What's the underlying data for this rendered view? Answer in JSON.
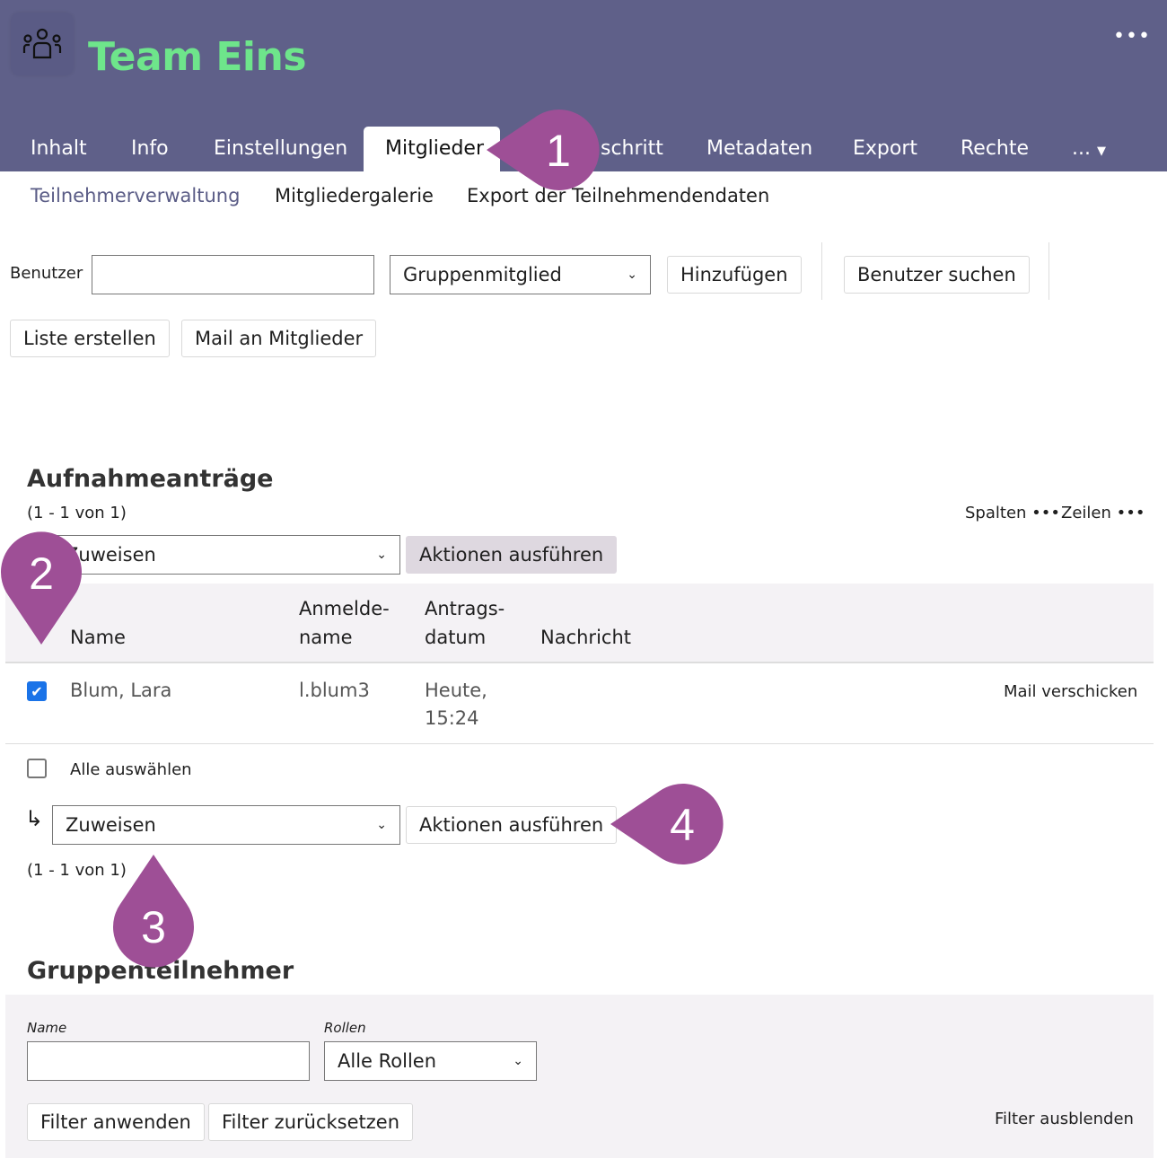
{
  "header": {
    "title": "Team Eins",
    "logo_icon": "group-icon",
    "more_icon": "more-icon",
    "more": "•••",
    "bg_color": "#5f6089",
    "title_color": "#6ee58b"
  },
  "tabs": [
    {
      "label": "Inhalt"
    },
    {
      "label": "Info"
    },
    {
      "label": "Einstellungen"
    },
    {
      "label": "Mitglieder",
      "active": true
    },
    {
      "label": "schritt"
    },
    {
      "label": "Metadaten"
    },
    {
      "label": "Export"
    },
    {
      "label": "Rechte"
    },
    {
      "label": "..."
    }
  ],
  "subtabs": [
    {
      "label": "Teilnehmerverwaltung",
      "active": true
    },
    {
      "label": "Mitgliedergalerie"
    },
    {
      "label": "Export der Teilnehmendendaten"
    }
  ],
  "toolbar": {
    "user_label": "Benutzer",
    "user_value": "",
    "role_select": "Gruppenmitglied",
    "add": "Hinzufügen",
    "search_user": "Benutzer suchen",
    "create_list": "Liste erstellen",
    "mail_members": "Mail an Mitglieder"
  },
  "requests": {
    "title": "Aufnahmeanträge",
    "range": "(1 - 1 von 1)",
    "columns_label": "Spalten •••",
    "rows_label": "Zeilen •••",
    "action_select": "Zuweisen",
    "run_actions": "Aktionen ausführen",
    "headers": {
      "name": "Name",
      "login_1": "Anmelde-",
      "login_2": "name",
      "date_1": "Antrags-",
      "date_2": "datum",
      "message": "Nachricht"
    },
    "rows": [
      {
        "checked": true,
        "name": "Blum, Lara",
        "login": "l.blum3",
        "date_1": "Heute,",
        "date_2": "15:24",
        "message": "",
        "mail": "Mail verschicken"
      }
    ],
    "select_all": "Alle auswählen",
    "bottom_action_select": "Zuweisen",
    "bottom_run_actions": "Aktionen ausführen",
    "bottom_range": "(1 - 1 von 1)",
    "arrow": "↳"
  },
  "members": {
    "title": "Gruppenteilnehmer",
    "name_label": "Name",
    "name_value": "",
    "roles_label": "Rollen",
    "roles_select": "Alle Rollen",
    "apply": "Filter anwenden",
    "reset": "Filter zurücksetzen",
    "hide": "Filter ausblenden"
  },
  "markers": {
    "color": "#9e4f96",
    "m1": "1",
    "m2": "2",
    "m3": "3",
    "m4": "4"
  }
}
